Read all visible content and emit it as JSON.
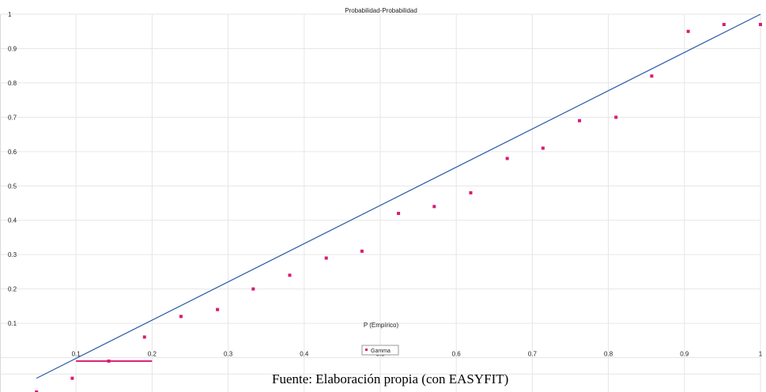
{
  "chart_data": {
    "type": "scatter",
    "title": "Probabilidad-Probabilidad",
    "xlabel": "P (Empírico)",
    "ylabel": "",
    "xlim": [
      0,
      1
    ],
    "ylim": [
      -0.1,
      1
    ],
    "x_ticks": [
      "0.1",
      "0.2",
      "0.3",
      "0.4",
      "0.5",
      "0.6",
      "0.7",
      "0.8",
      "0.9",
      "1"
    ],
    "y_ticks": [
      "0.1",
      "0.2",
      "0.3",
      "0.4",
      "0.5",
      "0.6",
      "0.7",
      "0.8",
      "0.9",
      "1"
    ],
    "grid": true,
    "legend": "bottom-center",
    "series": [
      {
        "name": "Gamma",
        "color": "#d81b72",
        "x": [
          0.048,
          0.095,
          0.143,
          0.19,
          0.238,
          0.286,
          0.333,
          0.381,
          0.429,
          0.476,
          0.524,
          0.571,
          0.619,
          0.667,
          0.714,
          0.762,
          0.81,
          0.857,
          0.905,
          0.952,
          1.0
        ],
        "y": [
          -0.1,
          -0.06,
          -0.01,
          0.06,
          0.12,
          0.14,
          0.2,
          0.24,
          0.29,
          0.31,
          0.42,
          0.44,
          0.48,
          0.58,
          0.61,
          0.69,
          0.7,
          0.82,
          0.95,
          0.97,
          0.97
        ]
      }
    ],
    "reference_line": {
      "color": "#2a5aa8",
      "x": [
        0.048,
        1.0
      ],
      "y": [
        -0.06,
        1.0
      ]
    },
    "highlight_segment": {
      "color": "#d81b72",
      "x": [
        0.1,
        0.2
      ],
      "y": [
        -0.01,
        -0.01
      ]
    }
  },
  "caption": "Fuente: Elaboración propia (con EASYFIT)"
}
